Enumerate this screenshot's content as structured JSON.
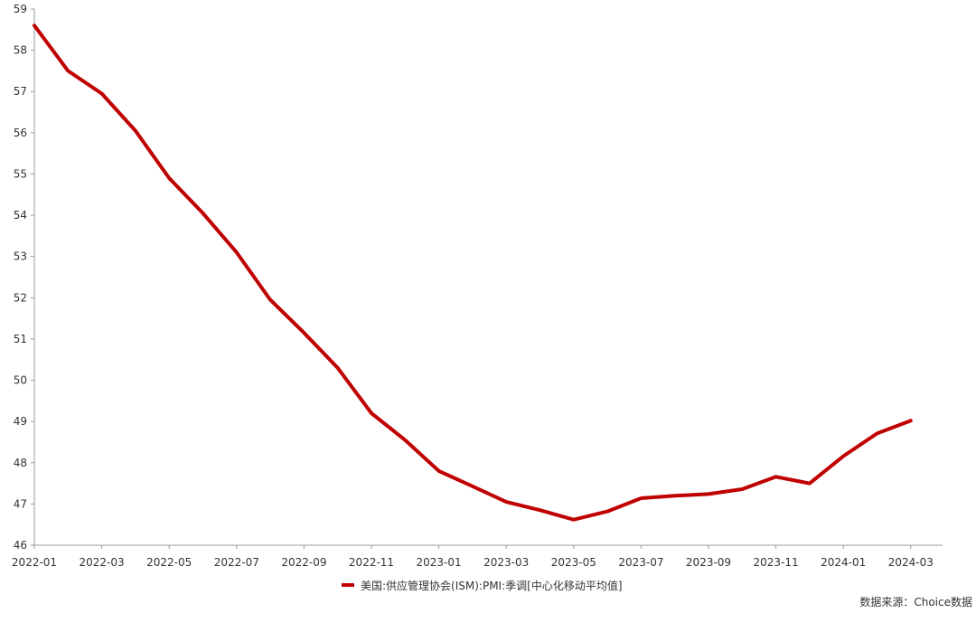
{
  "chart_data": {
    "type": "line",
    "title": "",
    "xlabel": "",
    "ylabel": "",
    "ylim": [
      46,
      59
    ],
    "yticks": [
      46,
      47,
      48,
      49,
      50,
      51,
      52,
      53,
      54,
      55,
      56,
      57,
      58,
      59
    ],
    "grid": false,
    "legend_position": "bottom",
    "x": [
      "2022-01",
      "2022-02",
      "2022-03",
      "2022-04",
      "2022-05",
      "2022-06",
      "2022-07",
      "2022-08",
      "2022-09",
      "2022-10",
      "2022-11",
      "2022-12",
      "2023-01",
      "2023-02",
      "2023-03",
      "2023-04",
      "2023-05",
      "2023-06",
      "2023-07",
      "2023-08",
      "2023-09",
      "2023-10",
      "2023-11",
      "2023-12",
      "2024-01",
      "2024-02",
      "2024-03"
    ],
    "xtick_labels": [
      "2022-01",
      "2022-03",
      "2022-05",
      "2022-07",
      "2022-09",
      "2022-11",
      "2023-01",
      "2023-03",
      "2023-05",
      "2023-07",
      "2023-09",
      "2023-11",
      "2024-01",
      "2024-03"
    ],
    "series": [
      {
        "name": "美国:供应管理协会(ISM):PMI:季调[中心化移动平均值]",
        "color": "#c00000",
        "values": [
          58.6,
          57.5,
          56.95,
          56.05,
          54.9,
          54.05,
          53.1,
          51.95,
          51.15,
          50.3,
          49.2,
          48.55,
          47.8,
          47.43,
          47.05,
          46.85,
          46.62,
          46.82,
          47.14,
          47.2,
          47.24,
          47.36,
          47.66,
          47.5,
          48.16,
          48.71,
          49.02
        ]
      }
    ],
    "source": "数据来源：Choice数据"
  }
}
